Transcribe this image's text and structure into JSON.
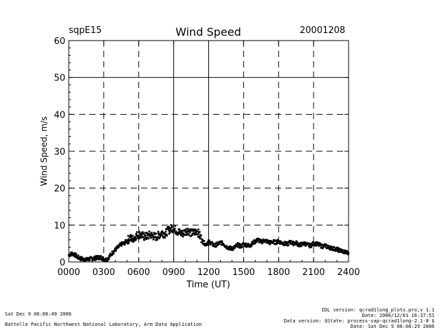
{
  "header": {
    "site": "sqpE15",
    "date": "20001208"
  },
  "chart_data": {
    "type": "scatter",
    "title": "Wind Speed",
    "xlabel": "Time (UT)",
    "ylabel": "Wind Speed, m/s",
    "xlim": [
      0,
      24
    ],
    "ylim": [
      0,
      60
    ],
    "x_ticks": [
      {
        "value": 0,
        "label": "0000"
      },
      {
        "value": 3,
        "label": "0300"
      },
      {
        "value": 6,
        "label": "0600"
      },
      {
        "value": 9,
        "label": "0900"
      },
      {
        "value": 12,
        "label": "1200"
      },
      {
        "value": 15,
        "label": "1500"
      },
      {
        "value": 18,
        "label": "1800"
      },
      {
        "value": 21,
        "label": "2100"
      },
      {
        "value": 24,
        "label": "2400"
      }
    ],
    "y_ticks": [
      {
        "value": 0,
        "label": "0"
      },
      {
        "value": 10,
        "label": "10"
      },
      {
        "value": 20,
        "label": "20"
      },
      {
        "value": 30,
        "label": "30"
      },
      {
        "value": 40,
        "label": "40"
      },
      {
        "value": 50,
        "label": "50"
      },
      {
        "value": 60,
        "label": "60"
      }
    ],
    "grid": "dashed",
    "solid_reference_lines": {
      "x": [
        9,
        12
      ],
      "y": [
        50
      ]
    },
    "series": [
      {
        "name": "Wind Speed",
        "color": "#000000",
        "x": [
          0.0,
          0.25,
          0.5,
          0.75,
          1.0,
          1.25,
          1.5,
          1.75,
          2.0,
          2.25,
          2.5,
          2.75,
          3.0,
          3.25,
          3.5,
          3.75,
          4.0,
          4.25,
          4.5,
          4.75,
          5.0,
          5.25,
          5.5,
          5.75,
          6.0,
          6.25,
          6.5,
          6.75,
          7.0,
          7.25,
          7.5,
          7.75,
          8.0,
          8.25,
          8.5,
          8.75,
          9.0,
          9.25,
          9.5,
          9.75,
          10.0,
          10.25,
          10.5,
          10.75,
          11.0,
          11.25,
          11.5,
          11.75,
          12.0,
          12.25,
          12.5,
          12.75,
          13.0,
          13.25,
          13.5,
          13.75,
          14.0,
          14.25,
          14.5,
          14.75,
          15.0,
          15.25,
          15.5,
          15.75,
          16.0,
          16.25,
          16.5,
          16.75,
          17.0,
          17.25,
          17.5,
          17.75,
          18.0,
          18.25,
          18.5,
          18.75,
          19.0,
          19.25,
          19.5,
          19.75,
          20.0,
          20.25,
          20.5,
          20.75,
          21.0,
          21.25,
          21.5,
          21.75,
          22.0,
          22.25,
          22.5,
          22.75,
          23.0,
          23.25,
          23.5,
          23.75,
          24.0
        ],
        "y": [
          1.8,
          2.3,
          2.0,
          1.3,
          1.0,
          0.7,
          0.6,
          0.8,
          0.9,
          1.0,
          1.2,
          1.2,
          0.8,
          0.6,
          1.5,
          2.5,
          3.3,
          4.0,
          4.8,
          5.0,
          5.8,
          6.5,
          6.2,
          7.0,
          7.5,
          7.2,
          6.8,
          7.0,
          7.4,
          7.0,
          6.8,
          7.3,
          8.0,
          7.5,
          8.5,
          9.0,
          9.2,
          8.4,
          8.0,
          7.6,
          8.2,
          8.6,
          7.8,
          8.0,
          8.5,
          7.0,
          5.5,
          4.8,
          5.4,
          5.0,
          4.4,
          4.8,
          5.2,
          5.0,
          4.2,
          3.8,
          3.6,
          4.0,
          4.6,
          4.2,
          4.8,
          4.6,
          4.4,
          5.0,
          5.6,
          6.0,
          5.4,
          5.8,
          5.6,
          5.2,
          5.5,
          5.3,
          5.6,
          5.2,
          5.0,
          4.8,
          5.4,
          5.0,
          5.2,
          4.6,
          4.8,
          5.0,
          4.6,
          4.4,
          5.0,
          4.9,
          4.6,
          4.2,
          4.4,
          4.0,
          3.8,
          3.6,
          3.4,
          3.1,
          2.9,
          2.6,
          2.4
        ]
      }
    ]
  },
  "footer": {
    "run_date": "Sat Dec  9 06:06:49 2006",
    "institution": "Battelle Pacific Northwest National Laboratory, Arm Data Application",
    "idl_version": "IDL version: qcrad1long_plots.pro,v 1.1",
    "date_line": "Date: 2006/12/01 16:37:51",
    "data_version": "Data version: $State: process-vap-qcrad1long-2.1-0 $",
    "run_date_right": "Date: Sat Dec  9 06:08:29 2006"
  }
}
